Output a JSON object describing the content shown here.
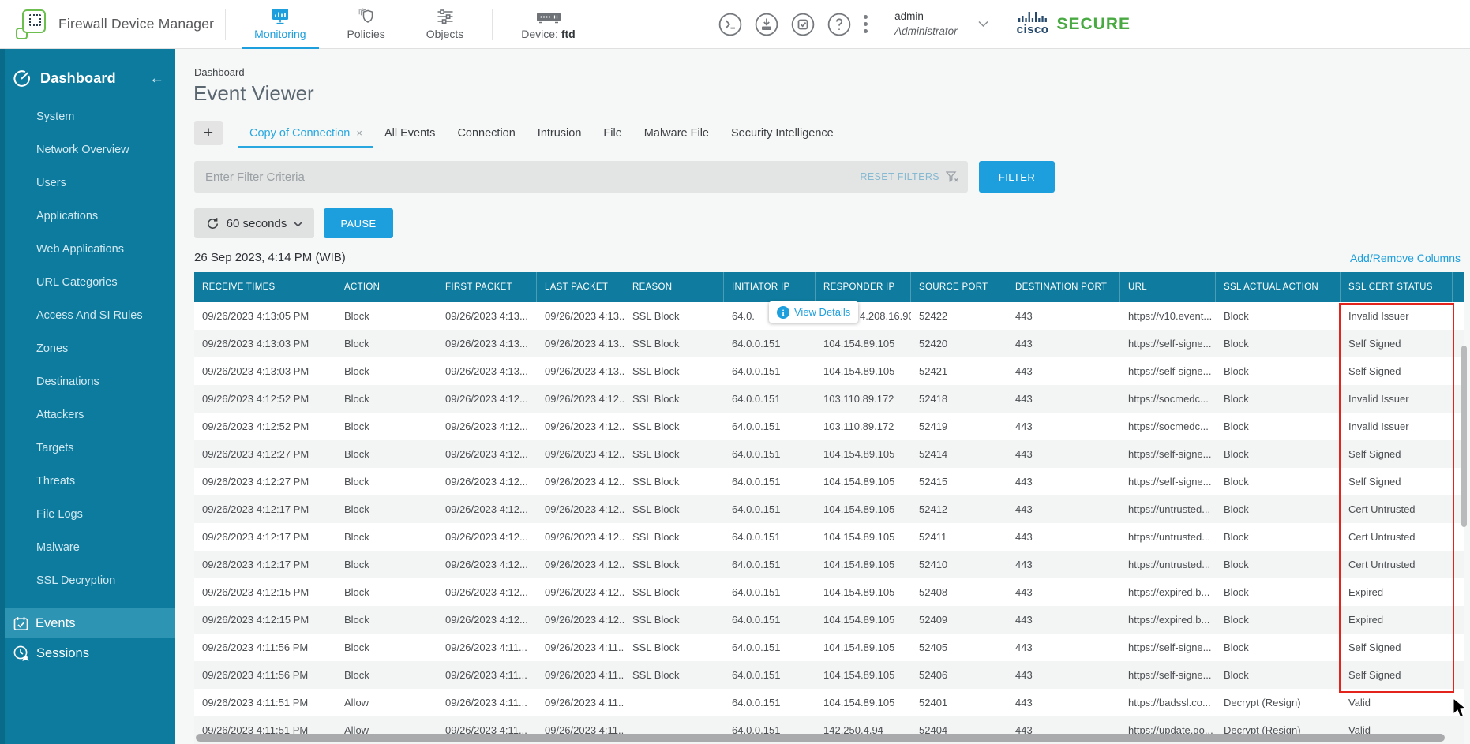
{
  "app": {
    "title": "Firewall Device Manager",
    "nav": [
      {
        "label": "Monitoring",
        "icon": "monitoring-icon",
        "active": true,
        "separator_before": true
      },
      {
        "label": "Policies",
        "icon": "policies-icon",
        "active": false,
        "separator_before": false
      },
      {
        "label": "Objects",
        "icon": "objects-icon",
        "active": false,
        "separator_before": false
      },
      {
        "label": "Device:",
        "label_bold": "ftd",
        "icon": "device-icon",
        "active": false,
        "separator_before": true
      }
    ],
    "header_icons": [
      "cli-console-icon",
      "deploy-icon",
      "tasks-icon",
      "help-icon"
    ],
    "user": {
      "name": "admin",
      "role": "Administrator"
    },
    "brand": {
      "cisco": "cisco",
      "secure": "SECURE"
    }
  },
  "sidebar": {
    "header": "Dashboard",
    "items": [
      "System",
      "Network Overview",
      "Users",
      "Applications",
      "Web Applications",
      "URL Categories",
      "Access And SI Rules",
      "Zones",
      "Destinations",
      "Attackers",
      "Targets",
      "Threats",
      "File Logs",
      "Malware",
      "SSL Decryption"
    ],
    "bottom_items": [
      {
        "label": "Events",
        "icon": "events-icon",
        "active": true
      },
      {
        "label": "Sessions",
        "icon": "sessions-icon",
        "active": false
      }
    ]
  },
  "main": {
    "breadcrumb": "Dashboard",
    "title": "Event Viewer",
    "tabs": [
      {
        "label": "Copy of Connection",
        "active": true,
        "closable": true
      },
      {
        "label": "All Events"
      },
      {
        "label": "Connection"
      },
      {
        "label": "Intrusion"
      },
      {
        "label": "File"
      },
      {
        "label": "Malware File"
      },
      {
        "label": "Security Intelligence"
      }
    ],
    "filter": {
      "placeholder": "Enter Filter Criteria",
      "reset_label": "RESET FILTERS",
      "filter_label": "FILTER"
    },
    "refresh": {
      "interval": "60 seconds",
      "pause_label": "PAUSE"
    },
    "timestamp": "26 Sep 2023, 4:14 PM (WIB)",
    "add_remove_columns": "Add/Remove Columns",
    "tooltip": {
      "label": "View Details"
    }
  },
  "table": {
    "columns": [
      "RECEIVE TIMES",
      "ACTION",
      "FIRST PACKET",
      "LAST PACKET",
      "REASON",
      "INITIATOR IP",
      "RESPONDER IP",
      "SOURCE PORT",
      "DESTINATION PORT",
      "URL",
      "SSL ACTUAL ACTION",
      "SSL CERT STATUS"
    ],
    "rows": [
      [
        "09/26/2023 4:13:05 PM",
        "Block",
        "09/26/2023 4:13...",
        "09/26/2023 4:13...",
        "SSL Block",
        "64.0.",
        "4.208.16.90",
        "52422",
        "443",
        "https://v10.event...",
        "Block",
        "Invalid Issuer"
      ],
      [
        "09/26/2023 4:13:03 PM",
        "Block",
        "09/26/2023 4:13...",
        "09/26/2023 4:13...",
        "SSL Block",
        "64.0.0.151",
        "104.154.89.105",
        "52420",
        "443",
        "https://self-signe...",
        "Block",
        "Self Signed"
      ],
      [
        "09/26/2023 4:13:03 PM",
        "Block",
        "09/26/2023 4:13...",
        "09/26/2023 4:13...",
        "SSL Block",
        "64.0.0.151",
        "104.154.89.105",
        "52421",
        "443",
        "https://self-signe...",
        "Block",
        "Self Signed"
      ],
      [
        "09/26/2023 4:12:52 PM",
        "Block",
        "09/26/2023 4:12...",
        "09/26/2023 4:12...",
        "SSL Block",
        "64.0.0.151",
        "103.110.89.172",
        "52418",
        "443",
        "https://socmedc...",
        "Block",
        "Invalid Issuer"
      ],
      [
        "09/26/2023 4:12:52 PM",
        "Block",
        "09/26/2023 4:12...",
        "09/26/2023 4:12...",
        "SSL Block",
        "64.0.0.151",
        "103.110.89.172",
        "52419",
        "443",
        "https://socmedc...",
        "Block",
        "Invalid Issuer"
      ],
      [
        "09/26/2023 4:12:27 PM",
        "Block",
        "09/26/2023 4:12...",
        "09/26/2023 4:12...",
        "SSL Block",
        "64.0.0.151",
        "104.154.89.105",
        "52414",
        "443",
        "https://self-signe...",
        "Block",
        "Self Signed"
      ],
      [
        "09/26/2023 4:12:27 PM",
        "Block",
        "09/26/2023 4:12...",
        "09/26/2023 4:12...",
        "SSL Block",
        "64.0.0.151",
        "104.154.89.105",
        "52415",
        "443",
        "https://self-signe...",
        "Block",
        "Self Signed"
      ],
      [
        "09/26/2023 4:12:17 PM",
        "Block",
        "09/26/2023 4:12...",
        "09/26/2023 4:12...",
        "SSL Block",
        "64.0.0.151",
        "104.154.89.105",
        "52412",
        "443",
        "https://untrusted...",
        "Block",
        "Cert Untrusted"
      ],
      [
        "09/26/2023 4:12:17 PM",
        "Block",
        "09/26/2023 4:12...",
        "09/26/2023 4:12...",
        "SSL Block",
        "64.0.0.151",
        "104.154.89.105",
        "52411",
        "443",
        "https://untrusted...",
        "Block",
        "Cert Untrusted"
      ],
      [
        "09/26/2023 4:12:17 PM",
        "Block",
        "09/26/2023 4:12...",
        "09/26/2023 4:12...",
        "SSL Block",
        "64.0.0.151",
        "104.154.89.105",
        "52410",
        "443",
        "https://untrusted...",
        "Block",
        "Cert Untrusted"
      ],
      [
        "09/26/2023 4:12:15 PM",
        "Block",
        "09/26/2023 4:12...",
        "09/26/2023 4:12...",
        "SSL Block",
        "64.0.0.151",
        "104.154.89.105",
        "52408",
        "443",
        "https://expired.b...",
        "Block",
        "Expired"
      ],
      [
        "09/26/2023 4:12:15 PM",
        "Block",
        "09/26/2023 4:12...",
        "09/26/2023 4:12...",
        "SSL Block",
        "64.0.0.151",
        "104.154.89.105",
        "52409",
        "443",
        "https://expired.b...",
        "Block",
        "Expired"
      ],
      [
        "09/26/2023 4:11:56 PM",
        "Block",
        "09/26/2023 4:11...",
        "09/26/2023 4:11...",
        "SSL Block",
        "64.0.0.151",
        "104.154.89.105",
        "52405",
        "443",
        "https://self-signe...",
        "Block",
        "Self Signed"
      ],
      [
        "09/26/2023 4:11:56 PM",
        "Block",
        "09/26/2023 4:11...",
        "09/26/2023 4:11...",
        "SSL Block",
        "64.0.0.151",
        "104.154.89.105",
        "52406",
        "443",
        "https://self-signe...",
        "Block",
        "Self Signed"
      ],
      [
        "09/26/2023 4:11:51 PM",
        "Allow",
        "09/26/2023 4:11...",
        "09/26/2023 4:11...",
        "",
        "64.0.0.151",
        "104.154.89.105",
        "52401",
        "443",
        "https://badssl.co...",
        "Decrypt (Resign)",
        "Valid"
      ],
      [
        "09/26/2023 4:11:51 PM",
        "Allow",
        "09/26/2023 4:11...",
        "09/26/2023 4:11...",
        "",
        "64.0.0.151",
        "142.250.4.94",
        "52404",
        "443",
        "https://update.go...",
        "Decrypt (Resign)",
        "Valid"
      ]
    ]
  },
  "annotations": {
    "highlight_box_column": "SSL CERT STATUS"
  },
  "colors": {
    "teal": "#0c7b9e",
    "teal_active": "#2e94b4",
    "accent_blue": "#1d9fdd",
    "logo_green": "#6cbe4f",
    "secure_green": "#49a942",
    "cisco_navy": "#274b6d",
    "highlight_red": "#e3241c"
  }
}
